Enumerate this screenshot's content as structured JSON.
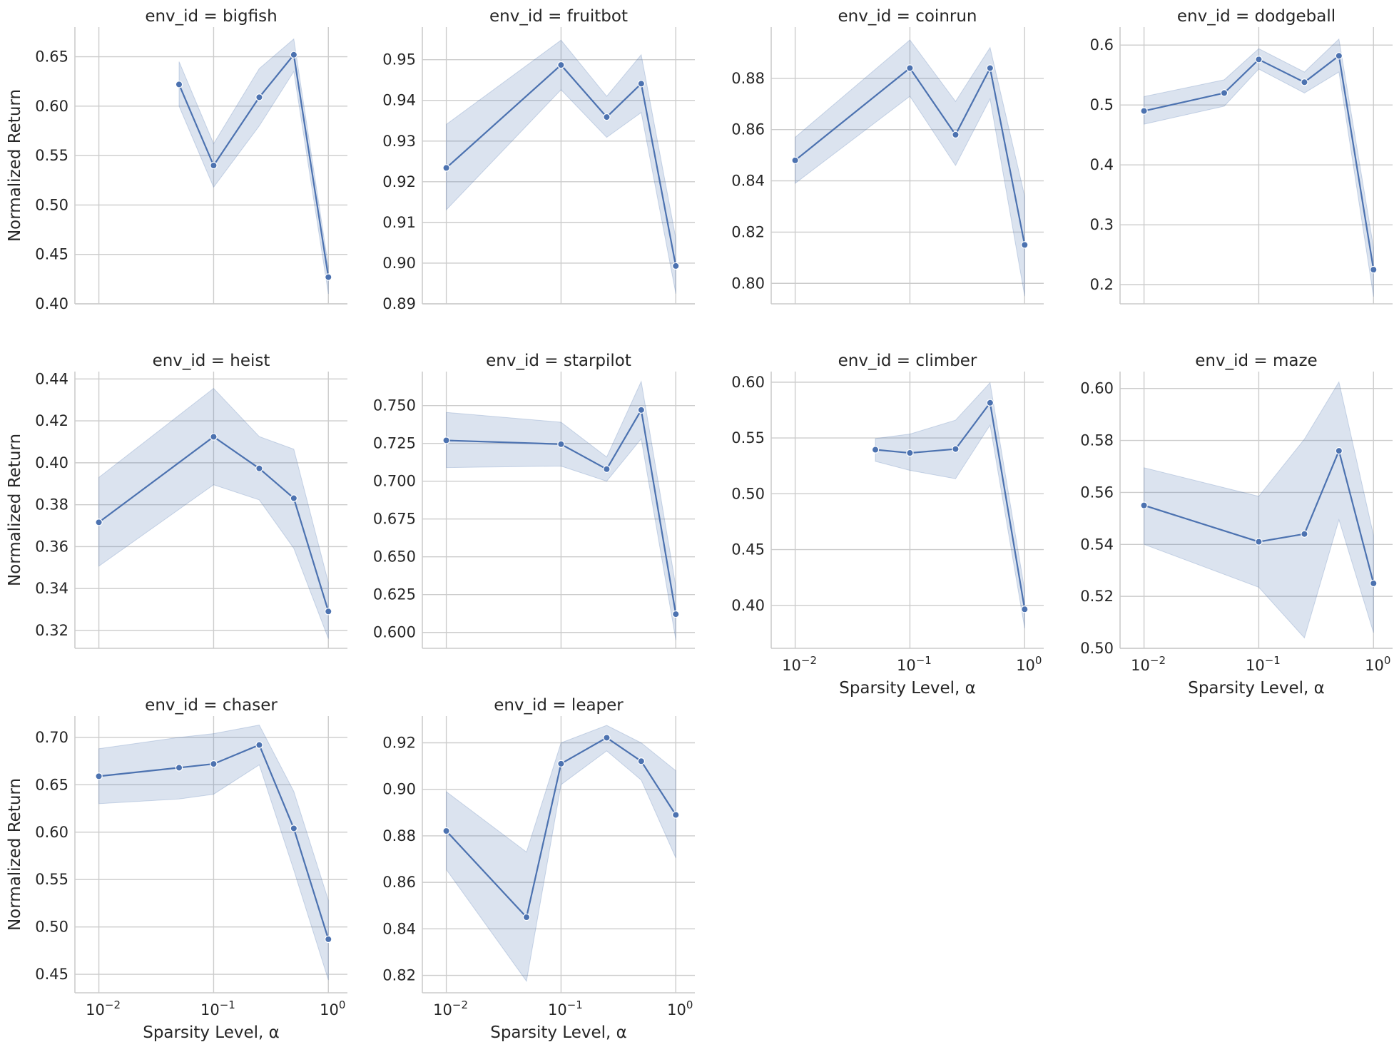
{
  "chart_data": {
    "type": "line",
    "x": [
      0.01,
      0.05,
      0.1,
      0.25,
      0.5,
      1
    ],
    "xscale": "log",
    "xlim": [
      0.008,
      1.2
    ],
    "x_ticks": [
      {
        "value": 0.01,
        "label": "10",
        "exp": "−2"
      },
      {
        "value": 0.1,
        "label": "10",
        "exp": "−1"
      },
      {
        "value": 1,
        "label": "10",
        "exp": "0"
      }
    ],
    "xlabel": "Sparsity Level, α",
    "ylabel": "Normalized Return",
    "panels": [
      {
        "title": "env_id = bigfish",
        "x": [
          0.05,
          0.1,
          0.25,
          0.5,
          1
        ],
        "y": [
          0.622,
          0.54,
          0.609,
          0.652,
          0.427
        ],
        "lo": [
          0.6,
          0.518,
          0.58,
          0.635,
          0.41
        ],
        "hi": [
          0.645,
          0.562,
          0.638,
          0.668,
          0.438
        ],
        "ylim": [
          0.4,
          0.68
        ],
        "yticks": [
          0.4,
          0.45,
          0.5,
          0.55,
          0.6,
          0.65
        ],
        "yticklabels": [
          "0.40",
          "0.45",
          "0.50",
          "0.55",
          "0.60",
          "0.65"
        ],
        "show_xticks": false
      },
      {
        "title": "env_id = fruitbot",
        "x": [
          0.01,
          0.1,
          0.25,
          0.5,
          1
        ],
        "y": [
          0.9234,
          0.9487,
          0.9359,
          0.9441,
          0.8993
        ],
        "lo": [
          0.9131,
          0.9426,
          0.9309,
          0.937,
          0.8925
        ],
        "hi": [
          0.9341,
          0.9548,
          0.941,
          0.9512,
          0.9061
        ],
        "ylim": [
          0.89,
          0.958
        ],
        "yticks": [
          0.89,
          0.9,
          0.91,
          0.92,
          0.93,
          0.94,
          0.95
        ],
        "yticklabels": [
          "0.89",
          "0.90",
          "0.91",
          "0.92",
          "0.93",
          "0.94",
          "0.95"
        ],
        "show_xticks": false
      },
      {
        "title": "env_id = coinrun",
        "x": [
          0.01,
          0.1,
          0.25,
          0.5,
          1
        ],
        "y": [
          0.848,
          0.884,
          0.858,
          0.884,
          0.815
        ],
        "lo": [
          0.839,
          0.873,
          0.846,
          0.872,
          0.795
        ],
        "hi": [
          0.857,
          0.895,
          0.871,
          0.892,
          0.834
        ],
        "ylim": [
          0.792,
          0.9
        ],
        "yticks": [
          0.8,
          0.82,
          0.84,
          0.86,
          0.88
        ],
        "yticklabels": [
          "0.80",
          "0.82",
          "0.84",
          "0.86",
          "0.88"
        ],
        "show_xticks": false
      },
      {
        "title": "env_id = dodgeball",
        "x": [
          0.01,
          0.05,
          0.1,
          0.25,
          0.5,
          1
        ],
        "y": [
          0.49,
          0.52,
          0.576,
          0.538,
          0.582,
          0.225
        ],
        "lo": [
          0.468,
          0.498,
          0.56,
          0.52,
          0.555,
          0.18
        ],
        "hi": [
          0.514,
          0.542,
          0.594,
          0.555,
          0.61,
          0.262
        ],
        "ylim": [
          0.168,
          0.63
        ],
        "yticks": [
          0.2,
          0.3,
          0.4,
          0.5,
          0.6
        ],
        "yticklabels": [
          "0.2",
          "0.3",
          "0.4",
          "0.5",
          "0.6"
        ],
        "show_xticks": false
      },
      {
        "title": "env_id = heist",
        "x": [
          0.01,
          0.1,
          0.25,
          0.5,
          1
        ],
        "y": [
          0.3716,
          0.4124,
          0.3973,
          0.3831,
          0.3291
        ],
        "lo": [
          0.3507,
          0.3895,
          0.3823,
          0.3592,
          0.3161
        ],
        "hi": [
          0.393,
          0.4355,
          0.4125,
          0.4065,
          0.3428
        ],
        "ylim": [
          0.3115,
          0.4435
        ],
        "yticks": [
          0.32,
          0.34,
          0.36,
          0.38,
          0.4,
          0.42,
          0.44
        ],
        "yticklabels": [
          "0.32",
          "0.34",
          "0.36",
          "0.38",
          "0.40",
          "0.42",
          "0.44"
        ],
        "show_xticks": false
      },
      {
        "title": "env_id = starpilot",
        "x": [
          0.01,
          0.1,
          0.25,
          0.5,
          1
        ],
        "y": [
          0.727,
          0.7245,
          0.708,
          0.7471,
          0.6121
        ],
        "lo": [
          0.709,
          0.71,
          0.7,
          0.728,
          0.595
        ],
        "hi": [
          0.7455,
          0.739,
          0.716,
          0.766,
          0.6305
        ],
        "ylim": [
          0.5895,
          0.7725
        ],
        "yticks": [
          0.6,
          0.625,
          0.65,
          0.675,
          0.7,
          0.725,
          0.75
        ],
        "yticklabels": [
          "0.600",
          "0.625",
          "0.650",
          "0.675",
          "0.700",
          "0.725",
          "0.750"
        ],
        "show_xticks": false
      },
      {
        "title": "env_id = climber",
        "x": [
          0.05,
          0.1,
          0.25,
          0.5,
          1
        ],
        "y": [
          0.5395,
          0.5366,
          0.5401,
          0.5815,
          0.3965
        ],
        "lo": [
          0.529,
          0.521,
          0.5135,
          0.5615,
          0.3795
        ],
        "hi": [
          0.5495,
          0.5535,
          0.566,
          0.5995,
          0.4135
        ],
        "ylim": [
          0.3615,
          0.6095
        ],
        "yticks": [
          0.4,
          0.45,
          0.5,
          0.55,
          0.6
        ],
        "yticklabels": [
          "0.40",
          "0.45",
          "0.50",
          "0.55",
          "0.60"
        ],
        "show_xticks": true
      },
      {
        "title": "env_id = maze",
        "x": [
          0.01,
          0.1,
          0.25,
          0.5,
          1
        ],
        "y": [
          0.555,
          0.541,
          0.544,
          0.576,
          0.525
        ],
        "lo": [
          0.54,
          0.5235,
          0.504,
          0.5495,
          0.506
        ],
        "hi": [
          0.5695,
          0.5585,
          0.5805,
          0.6025,
          0.5435
        ],
        "ylim": [
          0.5,
          0.6065
        ],
        "yticks": [
          0.5,
          0.52,
          0.54,
          0.56,
          0.58,
          0.6
        ],
        "yticklabels": [
          "0.50",
          "0.52",
          "0.54",
          "0.56",
          "0.58",
          "0.60"
        ],
        "show_xticks": true
      },
      {
        "title": "env_id = chaser",
        "x": [
          0.01,
          0.05,
          0.1,
          0.25,
          0.5,
          1
        ],
        "y": [
          0.659,
          0.668,
          0.672,
          0.692,
          0.604,
          0.487
        ],
        "lo": [
          0.63,
          0.635,
          0.64,
          0.671,
          0.56,
          0.444
        ],
        "hi": [
          0.688,
          0.7,
          0.704,
          0.713,
          0.643,
          0.528
        ],
        "ylim": [
          0.4305,
          0.7225
        ],
        "yticks": [
          0.45,
          0.5,
          0.55,
          0.6,
          0.65,
          0.7
        ],
        "yticklabels": [
          "0.45",
          "0.50",
          "0.55",
          "0.60",
          "0.65",
          "0.70"
        ],
        "show_xticks": true
      },
      {
        "title": "env_id = leaper",
        "x": [
          0.01,
          0.05,
          0.1,
          0.25,
          0.5,
          1
        ],
        "y": [
          0.8821,
          0.845,
          0.911,
          0.9222,
          0.9121,
          0.889
        ],
        "lo": [
          0.8655,
          0.8175,
          0.902,
          0.9165,
          0.904,
          0.8705
        ],
        "hi": [
          0.899,
          0.873,
          0.92,
          0.9275,
          0.92,
          0.908
        ],
        "ylim": [
          0.8125,
          0.9315
        ],
        "yticks": [
          0.82,
          0.84,
          0.86,
          0.88,
          0.9,
          0.92
        ],
        "yticklabels": [
          "0.82",
          "0.84",
          "0.86",
          "0.88",
          "0.90",
          "0.92"
        ],
        "show_xticks": true
      }
    ]
  }
}
